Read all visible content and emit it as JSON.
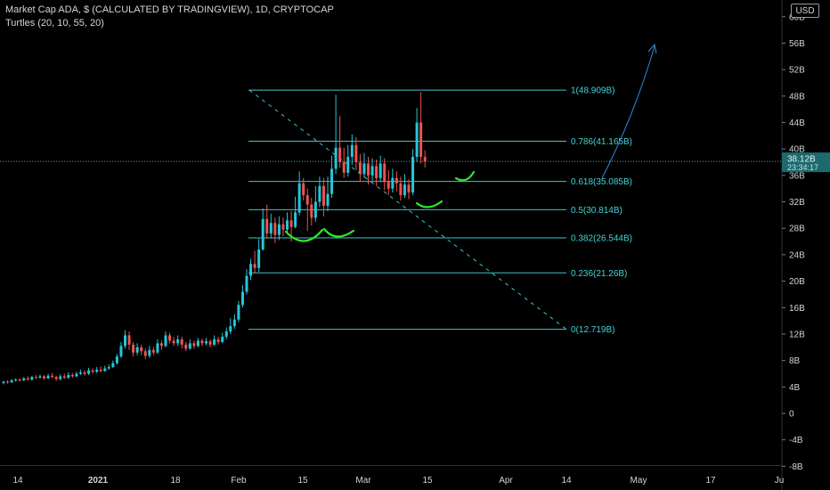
{
  "header": {
    "title": "Market Cap ADA, $ (CALCULATED BY TRADINGVIEW), 1D, CRYPTOCAP",
    "indicator": "Turtles (20, 10, 55, 20)",
    "currency_button": "USD"
  },
  "chart_data": {
    "type": "candlestick",
    "price_axis_labels": [
      "60B",
      "56B",
      "52B",
      "48B",
      "44B",
      "40B",
      "36B",
      "32B",
      "28B",
      "24B",
      "20B",
      "16B",
      "12B",
      "8B",
      "4B",
      "0",
      "-4B",
      "-8B"
    ],
    "price_axis_values": [
      60,
      56,
      52,
      48,
      44,
      40,
      36,
      32,
      28,
      24,
      20,
      16,
      12,
      8,
      4,
      0,
      -4,
      -8
    ],
    "time_axis_labels": [
      "14",
      "2021",
      "18",
      "Feb",
      "15",
      "Mar",
      "15",
      "Apr",
      "14",
      "May",
      "17",
      "Ju"
    ],
    "last_price": {
      "label": "38.12B",
      "countdown": "23:34:17",
      "value": 38.12
    },
    "fib_levels": [
      {
        "ratio": 1,
        "value": 48.909,
        "label": "1(48.909B)"
      },
      {
        "ratio": 0.786,
        "value": 41.165,
        "label": "0.786(41.165B)"
      },
      {
        "ratio": 0.618,
        "value": 35.085,
        "label": "0.618(35.085B)"
      },
      {
        "ratio": 0.5,
        "value": 30.814,
        "label": "0.5(30.814B)"
      },
      {
        "ratio": 0.382,
        "value": 26.544,
        "label": "0.382(26.544B)"
      },
      {
        "ratio": 0.236,
        "value": 21.26,
        "label": "0.236(21.26B)"
      },
      {
        "ratio": 0,
        "value": 12.719,
        "label": "0(12.719B)"
      }
    ],
    "candles": [
      [
        4.6,
        4.8,
        4.9,
        4.4
      ],
      [
        4.8,
        4.7,
        5.0,
        4.5
      ],
      [
        4.7,
        5.0,
        5.2,
        4.6
      ],
      [
        5.0,
        5.1,
        5.3,
        4.8
      ],
      [
        5.1,
        5.0,
        5.3,
        4.8
      ],
      [
        5.0,
        5.3,
        5.5,
        4.9
      ],
      [
        5.3,
        5.1,
        5.6,
        5.0
      ],
      [
        5.1,
        5.5,
        5.7,
        5.0
      ],
      [
        5.5,
        5.4,
        5.8,
        5.2
      ],
      [
        5.4,
        5.6,
        5.9,
        5.3
      ],
      [
        5.6,
        5.3,
        5.8,
        5.1
      ],
      [
        5.3,
        5.7,
        6.0,
        5.2
      ],
      [
        5.7,
        5.5,
        6.1,
        5.3
      ],
      [
        5.5,
        5.2,
        5.7,
        4.9
      ],
      [
        5.2,
        5.6,
        5.9,
        5.0
      ],
      [
        5.6,
        5.4,
        6.0,
        5.2
      ],
      [
        5.4,
        5.8,
        6.2,
        5.2
      ],
      [
        5.8,
        5.6,
        6.1,
        5.4
      ],
      [
        5.6,
        6.0,
        6.3,
        5.5
      ],
      [
        6.0,
        6.2,
        6.6,
        5.8
      ],
      [
        6.2,
        6.0,
        6.5,
        5.7
      ],
      [
        6.0,
        6.5,
        6.9,
        5.8
      ],
      [
        6.5,
        6.3,
        6.8,
        6.0
      ],
      [
        6.3,
        6.6,
        7.0,
        6.1
      ],
      [
        6.6,
        6.4,
        7.1,
        6.2
      ],
      [
        6.4,
        6.8,
        7.2,
        6.3
      ],
      [
        6.8,
        7.0,
        7.4,
        6.6
      ],
      [
        7.0,
        7.6,
        8.0,
        6.9
      ],
      [
        7.6,
        8.6,
        9.0,
        7.4
      ],
      [
        8.6,
        10.2,
        10.8,
        8.4
      ],
      [
        10.2,
        11.8,
        12.6,
        9.8
      ],
      [
        11.8,
        10.4,
        12.4,
        9.6
      ],
      [
        10.4,
        9.2,
        10.8,
        8.6
      ],
      [
        9.2,
        10.0,
        10.6,
        8.8
      ],
      [
        10.0,
        9.4,
        10.4,
        8.8
      ],
      [
        9.4,
        8.7,
        9.8,
        8.2
      ],
      [
        8.7,
        9.6,
        10.2,
        8.4
      ],
      [
        9.6,
        9.2,
        10.0,
        8.8
      ],
      [
        9.2,
        10.6,
        11.2,
        9.0
      ],
      [
        10.6,
        10.2,
        11.0,
        9.6
      ],
      [
        10.2,
        11.8,
        12.4,
        10.0
      ],
      [
        11.8,
        11.0,
        12.2,
        10.6
      ],
      [
        11.0,
        10.6,
        11.6,
        10.2
      ],
      [
        10.6,
        11.2,
        11.8,
        10.2
      ],
      [
        11.2,
        10.4,
        11.6,
        9.8
      ],
      [
        10.4,
        9.8,
        10.8,
        9.4
      ],
      [
        9.8,
        10.6,
        11.2,
        9.6
      ],
      [
        10.6,
        10.2,
        11.0,
        9.8
      ],
      [
        10.2,
        11.0,
        11.4,
        10.0
      ],
      [
        11.0,
        10.6,
        11.3,
        10.2
      ],
      [
        10.6,
        10.9,
        11.4,
        10.3
      ],
      [
        10.9,
        10.4,
        11.2,
        10.0
      ],
      [
        10.4,
        11.2,
        11.8,
        10.2
      ],
      [
        11.2,
        10.8,
        11.6,
        10.4
      ],
      [
        10.8,
        11.6,
        12.2,
        10.6
      ],
      [
        11.6,
        12.4,
        13.0,
        11.2
      ],
      [
        12.4,
        13.2,
        14.4,
        12.0
      ],
      [
        13.2,
        14.2,
        15.0,
        12.8
      ],
      [
        14.2,
        16.4,
        17.0,
        13.8
      ],
      [
        16.4,
        18.4,
        19.4,
        16.0
      ],
      [
        18.4,
        20.8,
        21.8,
        18.0
      ],
      [
        20.8,
        22.6,
        23.4,
        20.2
      ],
      [
        22.6,
        22.0,
        24.6,
        21.2
      ],
      [
        22.0,
        24.8,
        26.4,
        21.4
      ],
      [
        24.8,
        29.4,
        31.0,
        24.6
      ],
      [
        29.4,
        27.2,
        31.6,
        26.4
      ],
      [
        27.2,
        28.8,
        30.2,
        26.6
      ],
      [
        28.8,
        27.0,
        29.6,
        25.8
      ],
      [
        27.0,
        28.6,
        29.8,
        26.2
      ],
      [
        28.6,
        27.8,
        29.6,
        26.8
      ],
      [
        27.8,
        29.2,
        30.4,
        27.2
      ],
      [
        29.2,
        28.2,
        30.6,
        26.0
      ],
      [
        28.2,
        30.4,
        32.8,
        28.0
      ],
      [
        30.4,
        34.8,
        36.6,
        30.0
      ],
      [
        34.8,
        33.0,
        35.6,
        32.2
      ],
      [
        33.0,
        31.6,
        34.0,
        27.6
      ],
      [
        31.6,
        29.6,
        32.6,
        28.4
      ],
      [
        29.6,
        32.0,
        34.4,
        29.0
      ],
      [
        32.0,
        34.4,
        35.8,
        31.2
      ],
      [
        34.4,
        31.4,
        35.6,
        29.8
      ],
      [
        31.4,
        33.2,
        35.8,
        30.6
      ],
      [
        33.2,
        37.0,
        39.0,
        32.6
      ],
      [
        37.0,
        40.2,
        48.2,
        36.2
      ],
      [
        40.2,
        38.0,
        45.0,
        37.2
      ],
      [
        38.0,
        36.4,
        40.2,
        35.6
      ],
      [
        36.4,
        38.8,
        40.6,
        35.8
      ],
      [
        38.8,
        40.6,
        42.2,
        37.6
      ],
      [
        40.6,
        38.0,
        41.8,
        36.8
      ],
      [
        38.0,
        36.2,
        39.2,
        35.0
      ],
      [
        36.2,
        37.8,
        39.4,
        35.6
      ],
      [
        37.8,
        36.0,
        38.8,
        34.6
      ],
      [
        36.0,
        37.4,
        38.6,
        35.2
      ],
      [
        37.4,
        35.6,
        38.4,
        34.4
      ],
      [
        35.6,
        37.8,
        39.0,
        35.0
      ],
      [
        37.8,
        35.0,
        38.6,
        33.8
      ],
      [
        35.0,
        34.0,
        36.8,
        33.0
      ],
      [
        34.0,
        35.6,
        37.0,
        33.4
      ],
      [
        35.6,
        34.8,
        36.6,
        33.6
      ],
      [
        34.8,
        33.0,
        35.8,
        32.2
      ],
      [
        33.0,
        34.6,
        36.2,
        32.6
      ],
      [
        34.6,
        33.4,
        35.4,
        32.4
      ],
      [
        33.4,
        38.8,
        40.0,
        33.0
      ],
      [
        38.8,
        44.0,
        46.2,
        38.0
      ],
      [
        44.0,
        38.8,
        48.6,
        37.8
      ],
      [
        38.8,
        38.1,
        39.8,
        37.2
      ]
    ]
  }
}
